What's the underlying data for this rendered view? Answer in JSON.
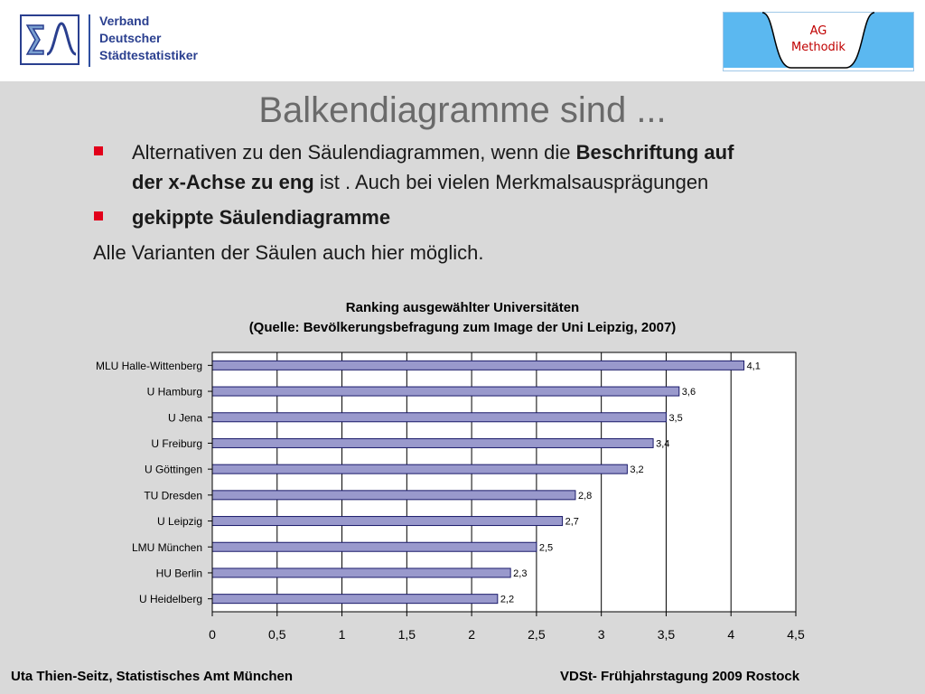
{
  "header": {
    "org_logo": {
      "icon": "sigma-distribution-logo-icon",
      "lines": [
        "Verband",
        "Deutscher",
        "Städtestatistiker"
      ],
      "color": "#2a3f8f"
    },
    "ag_logo": {
      "icon": "bell-curve-logo-icon",
      "line1": "AG",
      "line2": "Methodik",
      "bg_color": "#5bb8f0",
      "text_color": "#c00000"
    }
  },
  "slide": {
    "title": "Balkendiagramme sind ...",
    "bullet1": {
      "pre": "Alternativen zu den Säulendiagrammen, wenn die ",
      "bold1": "Beschriftung auf",
      "bold2": "der x-Achse zu eng",
      "post": " ist . Auch bei vielen Merkmalsausprägungen"
    },
    "bullet2": "gekippte Säulendiagramme",
    "plain": "Alle Varianten der Säulen auch hier möglich.",
    "bullet_color": "#e2001a"
  },
  "chart_data": {
    "type": "bar",
    "orientation": "horizontal",
    "title": "Ranking ausgewählter Universitäten",
    "subtitle": "(Quelle: Bevölkerungsbefragung zum Image der Uni Leipzig, 2007)",
    "categories": [
      "MLU Halle-Wittenberg",
      "U Hamburg",
      "U Jena",
      "U Freiburg",
      "U Göttingen",
      "TU Dresden",
      "U Leipzig",
      "LMU München",
      "HU Berlin",
      "U Heidelberg"
    ],
    "values": [
      4.1,
      3.6,
      3.5,
      3.4,
      3.2,
      2.8,
      2.7,
      2.5,
      2.3,
      2.2
    ],
    "value_labels": [
      "4,1",
      "3,6",
      "3,5",
      "3,4",
      "3,2",
      "2,8",
      "2,7",
      "2,5",
      "2,3",
      "2,2"
    ],
    "xlim": [
      0,
      4.5
    ],
    "xticks": [
      0,
      0.5,
      1,
      1.5,
      2,
      2.5,
      3,
      3.5,
      4,
      4.5
    ],
    "xtick_labels": [
      "0",
      "0,5",
      "1",
      "1,5",
      "2",
      "2,5",
      "3",
      "3,5",
      "4",
      "4,5"
    ],
    "grid": true,
    "legend": "none",
    "bar_color": "#9999cc",
    "bar_edge_color": "#1a1a6a",
    "plot_bg": "#ffffff"
  },
  "footer": {
    "left": "Uta Thien-Seitz, Statistisches Amt München",
    "right": "VDSt- Frühjahrstagung 2009 Rostock"
  }
}
